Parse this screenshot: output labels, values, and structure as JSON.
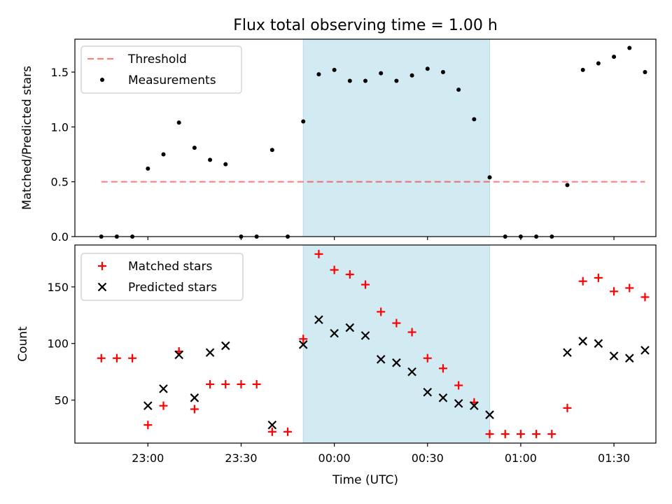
{
  "chart_data": {
    "type": "scatter",
    "title": "Flux total observing time = 1.00 h",
    "xlabel": "Time (UTC)",
    "x_tick_labels": [
      {
        "x": 0,
        "label": "23:00"
      },
      {
        "x": 30,
        "label": "23:30"
      },
      {
        "x": 60,
        "label": "00:00"
      },
      {
        "x": 90,
        "label": "00:30"
      },
      {
        "x": 120,
        "label": "01:00"
      },
      {
        "x": 150,
        "label": "01:30"
      }
    ],
    "x_tick_unit": "minutes after 23:00 UTC",
    "xlim": [
      -23.5,
      163.5
    ],
    "highlight_span": [
      50,
      110
    ],
    "highlight_color": "#add8e6",
    "panels": [
      {
        "id": "ratio",
        "ylabel": "Matched/Predicted stars",
        "ylim": [
          0,
          1.8
        ],
        "yticks": [
          0.0,
          0.5,
          1.0,
          1.5
        ],
        "ytick_labels": [
          "0.0",
          "0.5",
          "1.0",
          "1.5"
        ],
        "show_x_tick_labels": false,
        "legend_position": "upper-left",
        "threshold": {
          "name": "Threshold",
          "value": 0.5,
          "x_range": [
            -15,
            160
          ],
          "color": "#ff0000",
          "opacity": 0.5,
          "style": "dashed"
        },
        "series": [
          {
            "name": "Measurements",
            "marker": "dot",
            "color": "#000000",
            "x": [
              -15,
              -10,
              -5,
              0,
              5,
              10,
              15,
              20,
              25,
              30,
              35,
              40,
              45,
              50,
              55,
              60,
              65,
              70,
              75,
              80,
              85,
              90,
              95,
              100,
              105,
              110,
              115,
              120,
              125,
              130,
              135,
              140,
              145,
              150,
              155,
              160
            ],
            "y": [
              0,
              0,
              0,
              0.62,
              0.75,
              1.04,
              0.81,
              0.7,
              0.66,
              0,
              0,
              0.79,
              0,
              1.05,
              1.48,
              1.52,
              1.42,
              1.42,
              1.49,
              1.42,
              1.47,
              1.53,
              1.5,
              1.34,
              1.07,
              0.54,
              0,
              0,
              0,
              0,
              0.47,
              1.52,
              1.58,
              1.64,
              1.72,
              1.5
            ]
          }
        ]
      },
      {
        "id": "count",
        "ylabel": "Count",
        "ylim": [
          12,
          187
        ],
        "yticks": [
          50,
          100,
          150
        ],
        "ytick_labels": [
          "50",
          "100",
          "150"
        ],
        "show_x_tick_labels": true,
        "legend_position": "upper-left",
        "series": [
          {
            "name": "Matched stars",
            "marker": "plus",
            "color": "#ff0000",
            "x": [
              -15,
              -10,
              -5,
              0,
              5,
              10,
              15,
              20,
              25,
              30,
              35,
              40,
              45,
              50,
              55,
              60,
              65,
              70,
              75,
              80,
              85,
              90,
              95,
              100,
              105,
              110,
              115,
              120,
              125,
              130,
              135,
              140,
              145,
              150,
              155,
              160
            ],
            "y": [
              87,
              87,
              87,
              28,
              45,
              93,
              42,
              64,
              64,
              64,
              64,
              22,
              22,
              104,
              179,
              165,
              161,
              152,
              128,
              118,
              110,
              87,
              78,
              63,
              48,
              20,
              20,
              20,
              20,
              20,
              43,
              155,
              158,
              146,
              149,
              141
            ]
          },
          {
            "name": "Predicted stars",
            "marker": "x",
            "color": "#000000",
            "x": [
              0,
              5,
              10,
              15,
              20,
              25,
              40,
              50,
              55,
              60,
              65,
              70,
              75,
              80,
              85,
              90,
              95,
              100,
              105,
              110,
              135,
              140,
              145,
              150,
              155,
              160
            ],
            "y": [
              45,
              60,
              90,
              52,
              92,
              98,
              28,
              99,
              121,
              109,
              114,
              107,
              86,
              83,
              75,
              57,
              52,
              47,
              45,
              37,
              92,
              102,
              100,
              89,
              87,
              94
            ]
          }
        ]
      }
    ]
  }
}
